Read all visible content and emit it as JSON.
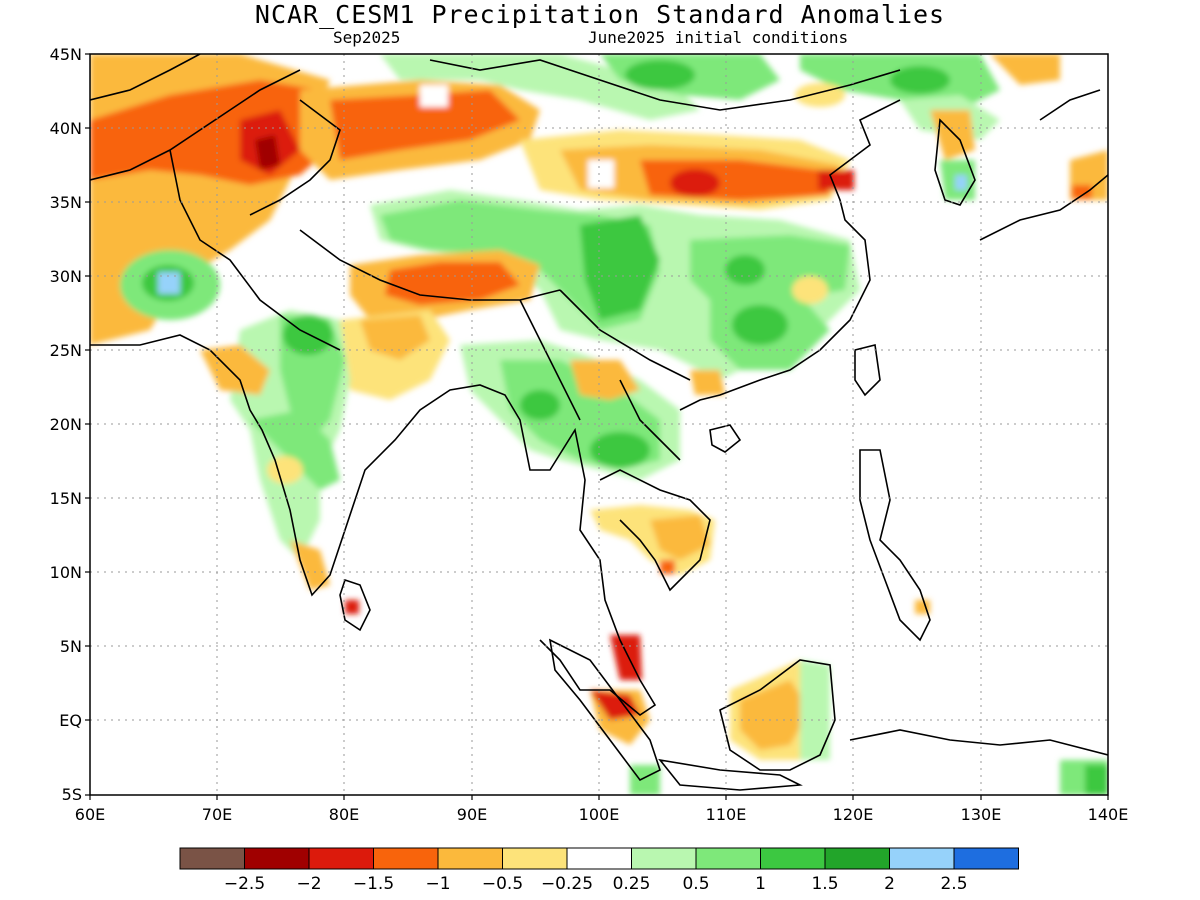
{
  "title": "NCAR_CESM1 Precipitation Standard Anomalies",
  "subtitle_left": "Sep2025",
  "subtitle_right": "June2025 initial conditions",
  "lat_labels": [
    "45N",
    "40N",
    "35N",
    "30N",
    "25N",
    "20N",
    "15N",
    "10N",
    "5N",
    "EQ",
    "5S"
  ],
  "lon_labels": [
    "60E",
    "70E",
    "80E",
    "90E",
    "100E",
    "110E",
    "120E",
    "130E",
    "140E"
  ],
  "colorbar": {
    "colors": [
      "#7a5346",
      "#a00000",
      "#dc1a0c",
      "#f8640c",
      "#fbb93c",
      "#fde37a",
      "#ffffff",
      "#b9f7b0",
      "#7ee87a",
      "#3cc841",
      "#22a52a",
      "#96d2fa",
      "#1e6ee0"
    ],
    "labels": [
      "-2.5",
      "-2",
      "-1.5",
      "-1",
      "-0.5",
      "-0.25",
      "0.25",
      "0.5",
      "1",
      "1.5",
      "2",
      "2.5"
    ]
  }
}
